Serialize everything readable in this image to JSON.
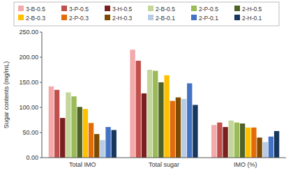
{
  "chart_data": {
    "type": "bar",
    "categories": [
      "Total IMO",
      "Total sugar",
      "IMO (%)"
    ],
    "series": [
      {
        "name": "3-B-0.5",
        "color": "#F4AAAA",
        "values": [
          142,
          215,
          65
        ]
      },
      {
        "name": "3-P-0.5",
        "color": "#C0504D",
        "values": [
          135,
          193,
          70
        ]
      },
      {
        "name": "3-H-0.5",
        "color": "#7B2020",
        "values": [
          79,
          128,
          61
        ]
      },
      {
        "name": "2-B-0.5",
        "color": "#C4D79B",
        "values": [
          130,
          175,
          74
        ]
      },
      {
        "name": "2-P-0.5",
        "color": "#9BBB59",
        "values": [
          122,
          173,
          70
        ]
      },
      {
        "name": "2-H-0.5",
        "color": "#4F6228",
        "values": [
          101,
          150,
          68
        ]
      },
      {
        "name": "2-B-0.3",
        "color": "#FFC000",
        "values": [
          97,
          164,
          60
        ]
      },
      {
        "name": "2-P-0.3",
        "color": "#E36C09",
        "values": [
          69,
          113,
          60
        ]
      },
      {
        "name": "2-H-0.3",
        "color": "#7F4B00",
        "values": [
          47,
          120,
          40
        ]
      },
      {
        "name": "2-B-0.1",
        "color": "#B8CCE4",
        "values": [
          35,
          117,
          31
        ]
      },
      {
        "name": "2-P-0.1",
        "color": "#4472C4",
        "values": [
          61,
          148,
          42
        ]
      },
      {
        "name": "2-H-0.1",
        "color": "#17375E",
        "values": [
          55,
          105,
          53
        ]
      }
    ],
    "ylabel": "Sugar contents (mg/mL)",
    "ylim": [
      0,
      250
    ],
    "yticks": [
      {
        "value": 0,
        "label": "0.00"
      },
      {
        "value": 50,
        "label": "50.00"
      },
      {
        "value": 100,
        "label": "100.00"
      },
      {
        "value": 150,
        "label": "150.00"
      },
      {
        "value": 200,
        "label": "200.00"
      },
      {
        "value": 250,
        "label": "250.00"
      }
    ],
    "grid": false,
    "legend": "top"
  }
}
